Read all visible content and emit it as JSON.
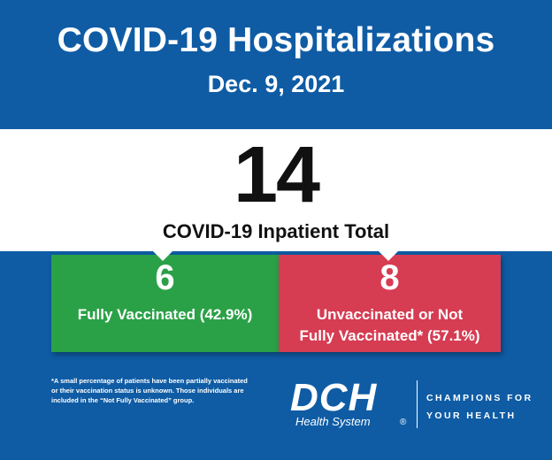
{
  "header": {
    "title": "COVID-19 Hospitalizations",
    "date": "Dec. 9, 2021"
  },
  "total": {
    "value": "14",
    "label": "COVID-19 Inpatient Total"
  },
  "panels": [
    {
      "value": "6",
      "label_line1": "Fully Vaccinated (42.9%)",
      "color": "#2aa147"
    },
    {
      "value": "8",
      "label_line1": "Unvaccinated or Not",
      "label_line2": "Fully Vaccinated* (57.1%)",
      "color": "#d63c52"
    }
  ],
  "footnote": {
    "line1": "*A small percentage of patients have been partially vaccinated",
    "line2": "or their vaccination status is unknown. Those individuals are",
    "line3": "included in the “Not Fully Vaccinated” group."
  },
  "logo": {
    "mark": "DCH",
    "subtitle": "Health System",
    "registered": "®"
  },
  "tagline": {
    "line1": "CHAMPIONS FOR",
    "line2": "YOUR HEALTH"
  },
  "colors": {
    "background": "#0f5ca5",
    "band": "#ffffff"
  }
}
